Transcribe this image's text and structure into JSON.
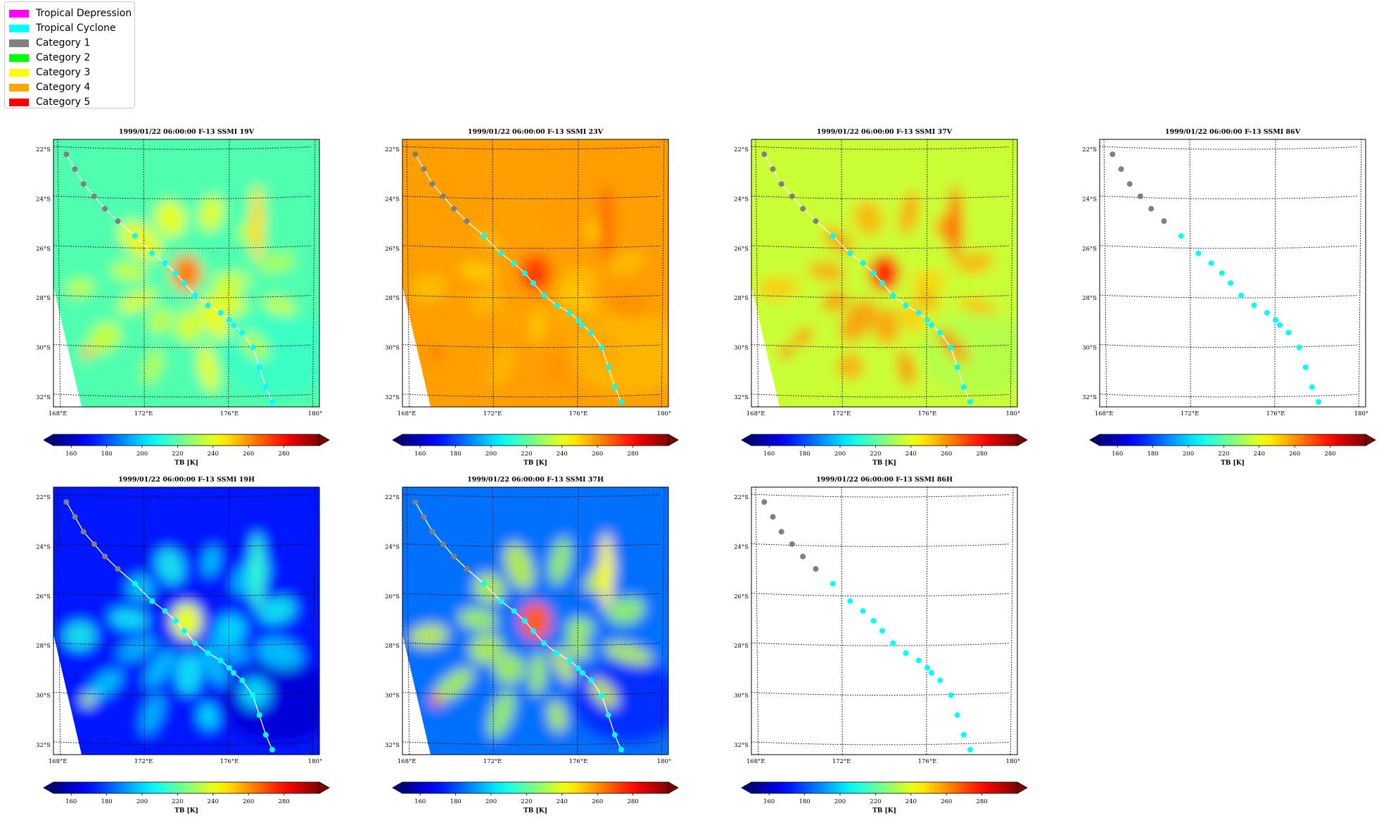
{
  "legend": {
    "items": [
      {
        "label": "Tropical Depression",
        "color": "#ff00ff"
      },
      {
        "label": "Tropical Cyclone",
        "color": "#00ffff"
      },
      {
        "label": "Category 1",
        "color": "#808080"
      },
      {
        "label": "Category 2",
        "color": "#00ff00"
      },
      {
        "label": "Category 3",
        "color": "#ffff00"
      },
      {
        "label": "Category 4",
        "color": "#ffa500"
      },
      {
        "label": "Category 5",
        "color": "#ff0000"
      }
    ]
  },
  "chart_data": [
    {
      "type": "heatmap",
      "title": "1999/01/22 06:00:00  F-13 SSMI 19V",
      "channel": "19V",
      "has_image": true,
      "base_tb": 218,
      "eye_tb": 262,
      "band_tb": 245,
      "ocean_shift": 0
    },
    {
      "type": "heatmap",
      "title": "1999/01/22 06:00:00  F-13 SSMI 23V",
      "channel": "23V",
      "has_image": true,
      "base_tb": 258,
      "eye_tb": 272,
      "band_tb": 262,
      "ocean_shift": 0
    },
    {
      "type": "heatmap",
      "title": "1999/01/22 06:00:00  F-13 SSMI 37V",
      "channel": "37V",
      "has_image": true,
      "base_tb": 236,
      "eye_tb": 275,
      "band_tb": 262,
      "ocean_shift": 0
    },
    {
      "type": "heatmap",
      "title": "1999/01/22 06:00:00  F-13 SSMI 86V",
      "channel": "86V",
      "has_image": false
    },
    {
      "type": "heatmap",
      "title": "1999/01/22 06:00:00  F-13 SSMI 19H",
      "channel": "19H",
      "has_image": true,
      "base_tb": 172,
      "eye_tb": 240,
      "band_tb": 210,
      "ocean_shift": -6
    },
    {
      "type": "heatmap",
      "title": "1999/01/22 06:00:00  F-13 SSMI 37H",
      "channel": "37H",
      "has_image": true,
      "base_tb": 185,
      "eye_tb": 268,
      "band_tb": 240,
      "ocean_shift": -8
    },
    {
      "type": "heatmap",
      "title": "1999/01/22 06:00:00  F-13 SSMI 86H",
      "channel": "86H",
      "has_image": false
    }
  ],
  "shared": {
    "lon_ticks": [
      "168°E",
      "172°E",
      "176°E",
      "180°"
    ],
    "lon_values": [
      168,
      172,
      176,
      180
    ],
    "lat_ticks": [
      "22°S",
      "24°S",
      "26°S",
      "28°S",
      "30°S",
      "32°S"
    ],
    "lat_values": [
      -22,
      -24,
      -26,
      -28,
      -30,
      -32
    ],
    "colorbar": {
      "label": "TB [K]",
      "range": [
        150,
        300
      ],
      "ticks": [
        160,
        180,
        200,
        220,
        240,
        260,
        280
      ],
      "colormap": "jet"
    },
    "track": [
      {
        "lon": 168.4,
        "lat": -22.2,
        "cat": "Category 1"
      },
      {
        "lon": 168.8,
        "lat": -22.8,
        "cat": "Category 1"
      },
      {
        "lon": 169.2,
        "lat": -23.4,
        "cat": "Category 1"
      },
      {
        "lon": 169.7,
        "lat": -23.9,
        "cat": "Category 1"
      },
      {
        "lon": 170.2,
        "lat": -24.4,
        "cat": "Category 1"
      },
      {
        "lon": 170.8,
        "lat": -24.9,
        "cat": "Category 1"
      },
      {
        "lon": 171.6,
        "lat": -25.5,
        "cat": "Tropical Cyclone"
      },
      {
        "lon": 172.4,
        "lat": -26.2,
        "cat": "Tropical Cyclone"
      },
      {
        "lon": 173.0,
        "lat": -26.6,
        "cat": "Tropical Cyclone"
      },
      {
        "lon": 173.5,
        "lat": -27.0,
        "cat": "Tropical Cyclone"
      },
      {
        "lon": 173.9,
        "lat": -27.4,
        "cat": "Tropical Cyclone"
      },
      {
        "lon": 174.4,
        "lat": -27.9,
        "cat": "Tropical Cyclone"
      },
      {
        "lon": 175.0,
        "lat": -28.3,
        "cat": "Tropical Cyclone"
      },
      {
        "lon": 175.6,
        "lat": -28.6,
        "cat": "Tropical Cyclone"
      },
      {
        "lon": 176.0,
        "lat": -28.9,
        "cat": "Tropical Cyclone"
      },
      {
        "lon": 176.2,
        "lat": -29.1,
        "cat": "Tropical Cyclone"
      },
      {
        "lon": 176.6,
        "lat": -29.4,
        "cat": "Tropical Cyclone"
      },
      {
        "lon": 177.1,
        "lat": -30.0,
        "cat": "Tropical Cyclone"
      },
      {
        "lon": 177.4,
        "lat": -30.8,
        "cat": "Tropical Cyclone"
      },
      {
        "lon": 177.7,
        "lat": -31.6,
        "cat": "Tropical Cyclone"
      },
      {
        "lon": 178.0,
        "lat": -32.2,
        "cat": "Tropical Cyclone"
      }
    ]
  }
}
